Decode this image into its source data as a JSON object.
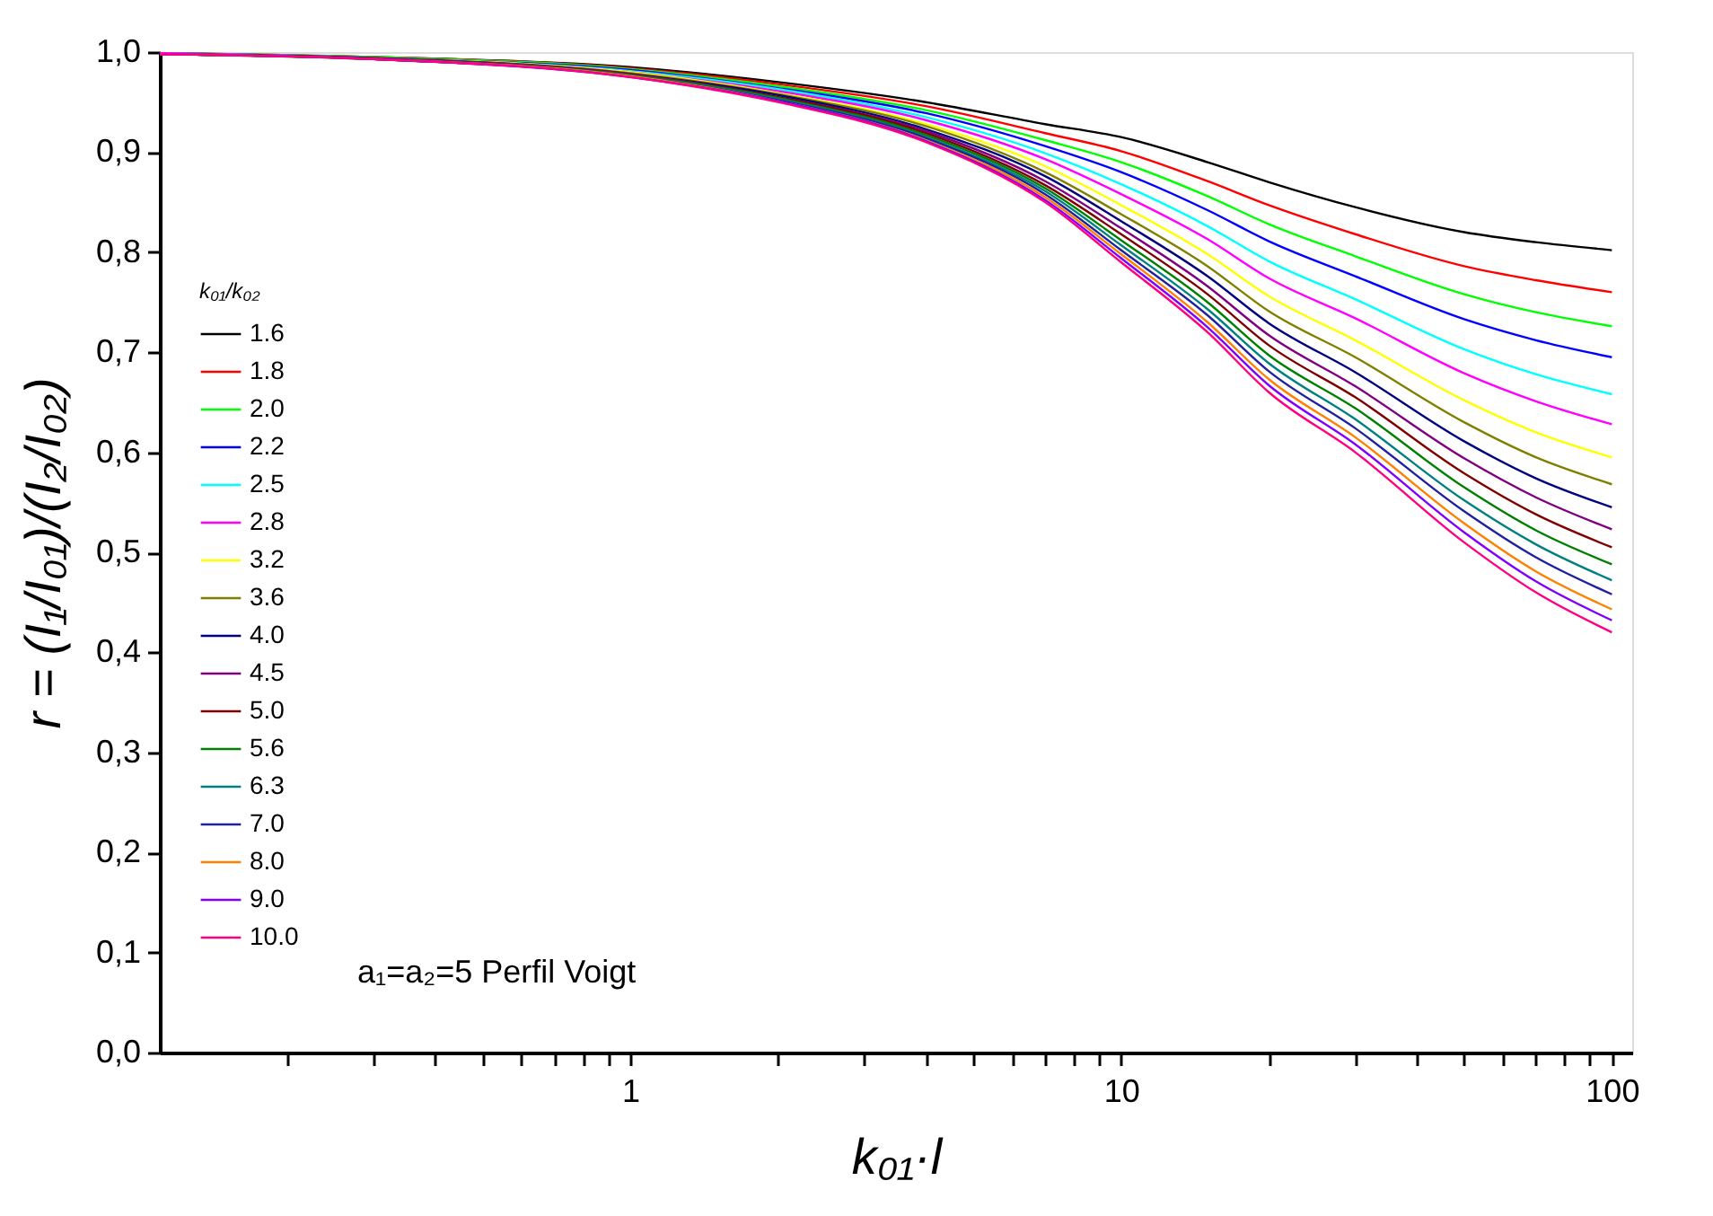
{
  "chart_data": {
    "type": "line",
    "xlabel": "k₀₁·l",
    "ylabel": "r = (I₁/I₀₁)/(I₂/I₀₂)",
    "legend_title": "k₀₁/k₀₂",
    "annotations": [
      "a₁=a₂=5 Perfil Voigt"
    ],
    "x": [
      0.11,
      0.3,
      1,
      2,
      4,
      7,
      10,
      15,
      20,
      30,
      50,
      70,
      100
    ],
    "series": [
      {
        "name": "1.6",
        "color": "#000000",
        "values": [
          0.999,
          0.995,
          0.985,
          0.97,
          0.95,
          0.928,
          0.915,
          0.89,
          0.87,
          0.845,
          0.82,
          0.81,
          0.802
        ]
      },
      {
        "name": "1.8",
        "color": "#ff0000",
        "values": [
          0.999,
          0.995,
          0.984,
          0.968,
          0.946,
          0.919,
          0.901,
          0.871,
          0.847,
          0.818,
          0.786,
          0.772,
          0.76
        ]
      },
      {
        "name": "2.0",
        "color": "#00ff00",
        "values": [
          0.999,
          0.995,
          0.983,
          0.966,
          0.942,
          0.912,
          0.89,
          0.856,
          0.828,
          0.796,
          0.758,
          0.74,
          0.726
        ]
      },
      {
        "name": "2.2",
        "color": "#0000ff",
        "values": [
          0.999,
          0.994,
          0.982,
          0.964,
          0.939,
          0.906,
          0.88,
          0.842,
          0.811,
          0.776,
          0.733,
          0.712,
          0.695
        ]
      },
      {
        "name": "2.5",
        "color": "#00ffff",
        "values": [
          0.999,
          0.994,
          0.981,
          0.963,
          0.935,
          0.899,
          0.868,
          0.826,
          0.791,
          0.753,
          0.703,
          0.678,
          0.658
        ]
      },
      {
        "name": "2.8",
        "color": "#ff00ff",
        "values": [
          0.999,
          0.994,
          0.98,
          0.961,
          0.932,
          0.893,
          0.858,
          0.813,
          0.774,
          0.734,
          0.679,
          0.651,
          0.628
        ]
      },
      {
        "name": "3.2",
        "color": "#ffff00",
        "values": [
          0.998,
          0.994,
          0.98,
          0.959,
          0.928,
          0.886,
          0.847,
          0.798,
          0.756,
          0.712,
          0.652,
          0.62,
          0.595
        ]
      },
      {
        "name": "3.6",
        "color": "#808000",
        "values": [
          0.998,
          0.994,
          0.979,
          0.958,
          0.926,
          0.88,
          0.838,
          0.786,
          0.741,
          0.695,
          0.63,
          0.595,
          0.568
        ]
      },
      {
        "name": "4.0",
        "color": "#000080",
        "values": [
          0.998,
          0.994,
          0.978,
          0.957,
          0.923,
          0.876,
          0.831,
          0.776,
          0.729,
          0.68,
          0.611,
          0.574,
          0.545
        ]
      },
      {
        "name": "4.5",
        "color": "#800080",
        "values": [
          0.998,
          0.994,
          0.978,
          0.955,
          0.921,
          0.871,
          0.824,
          0.766,
          0.717,
          0.666,
          0.594,
          0.555,
          0.523
        ]
      },
      {
        "name": "5.0",
        "color": "#800000",
        "values": [
          0.998,
          0.993,
          0.977,
          0.955,
          0.919,
          0.867,
          0.818,
          0.758,
          0.707,
          0.655,
          0.579,
          0.538,
          0.505
        ]
      },
      {
        "name": "5.6",
        "color": "#008000",
        "values": [
          0.998,
          0.993,
          0.977,
          0.954,
          0.917,
          0.864,
          0.812,
          0.75,
          0.697,
          0.644,
          0.565,
          0.522,
          0.488
        ]
      },
      {
        "name": "6.3",
        "color": "#008080",
        "values": [
          0.998,
          0.993,
          0.976,
          0.953,
          0.915,
          0.861,
          0.807,
          0.743,
          0.689,
          0.633,
          0.552,
          0.508,
          0.472
        ]
      },
      {
        "name": "7.0",
        "color": "#2020a0",
        "values": [
          0.998,
          0.993,
          0.976,
          0.952,
          0.914,
          0.858,
          0.802,
          0.737,
          0.681,
          0.624,
          0.541,
          0.495,
          0.458
        ]
      },
      {
        "name": "8.0",
        "color": "#ff8000",
        "values": [
          0.998,
          0.993,
          0.976,
          0.951,
          0.912,
          0.855,
          0.798,
          0.73,
          0.673,
          0.615,
          0.529,
          0.481,
          0.443
        ]
      },
      {
        "name": "9.0",
        "color": "#8000ff",
        "values": [
          0.998,
          0.993,
          0.975,
          0.951,
          0.911,
          0.852,
          0.794,
          0.725,
          0.667,
          0.608,
          0.52,
          0.471,
          0.432
        ]
      },
      {
        "name": "10.0",
        "color": "#ff0080",
        "values": [
          0.998,
          0.993,
          0.975,
          0.95,
          0.91,
          0.85,
          0.79,
          0.72,
          0.66,
          0.6,
          0.51,
          0.46,
          0.42
        ]
      }
    ],
    "xlim": [
      0.11,
      110
    ],
    "ylim": [
      0,
      1
    ],
    "xticks": [
      {
        "value": 0.2,
        "label": null
      },
      {
        "value": 0.3,
        "label": null
      },
      {
        "value": 0.4,
        "label": null
      },
      {
        "value": 0.5,
        "label": null
      },
      {
        "value": 0.6,
        "label": null
      },
      {
        "value": 0.7,
        "label": null
      },
      {
        "value": 0.8,
        "label": null
      },
      {
        "value": 0.9,
        "label": null
      },
      1,
      {
        "value": 2,
        "label": null
      },
      {
        "value": 3,
        "label": null
      },
      {
        "value": 4,
        "label": null
      },
      {
        "value": 5,
        "label": null
      },
      {
        "value": 6,
        "label": null
      },
      {
        "value": 7,
        "label": null
      },
      {
        "value": 8,
        "label": null
      },
      {
        "value": 9,
        "label": null
      },
      10,
      {
        "value": 20,
        "label": null
      },
      {
        "value": 30,
        "label": null
      },
      {
        "value": 40,
        "label": null
      },
      {
        "value": 50,
        "label": null
      },
      {
        "value": 60,
        "label": null
      },
      {
        "value": 70,
        "label": null
      },
      {
        "value": 80,
        "label": null
      },
      {
        "value": 90,
        "label": null
      },
      100
    ],
    "yticks": [
      {
        "value": 0,
        "label": "0,0"
      },
      {
        "value": 0.1,
        "label": "0,1"
      },
      {
        "value": 0.2,
        "label": "0,2"
      },
      {
        "value": 0.3,
        "label": "0,3"
      },
      {
        "value": 0.4,
        "label": "0,4"
      },
      {
        "value": 0.5,
        "label": "0,5"
      },
      {
        "value": 0.6,
        "label": "0,6"
      },
      {
        "value": 0.7,
        "label": "0,7"
      },
      {
        "value": 0.8,
        "label": "0,8"
      },
      {
        "value": 0.9,
        "label": "0,9"
      },
      {
        "value": 1,
        "label": "1,0"
      }
    ],
    "log": "x",
    "grid": false,
    "legend": "left",
    "marker": "none",
    "line_style": "solid"
  }
}
